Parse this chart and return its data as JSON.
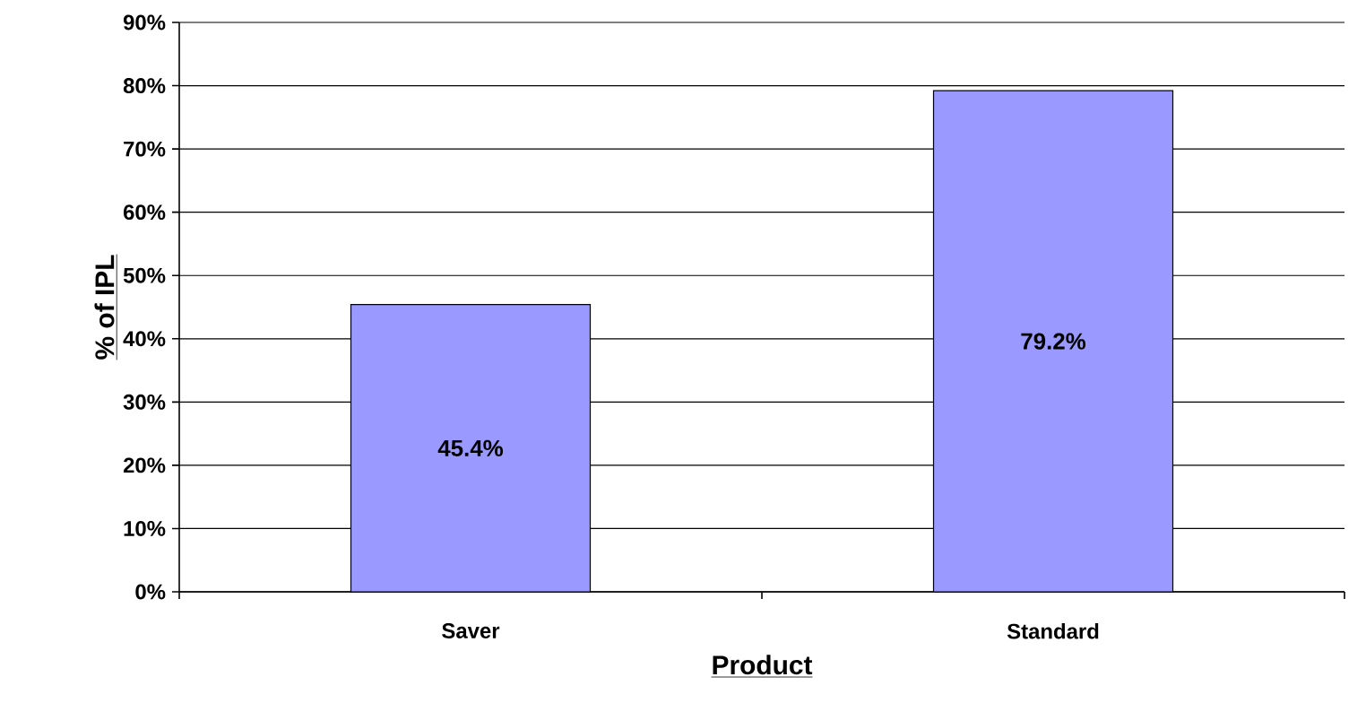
{
  "chart_data": {
    "type": "bar",
    "xlabel": "Product",
    "ylabel": "% of IPL",
    "categories": [
      "Saver",
      "Standard"
    ],
    "values": [
      45.4,
      79.2
    ],
    "value_labels": [
      "45.4%",
      "79.2%"
    ],
    "color": "#9999ff",
    "ylim": [
      0,
      90
    ],
    "yticks": [
      {
        "value": 0,
        "label": "0%"
      },
      {
        "value": 10,
        "label": "10%"
      },
      {
        "value": 20,
        "label": "20%"
      },
      {
        "value": 30,
        "label": "30%"
      },
      {
        "value": 40,
        "label": "40%"
      },
      {
        "value": 50,
        "label": "50%"
      },
      {
        "value": 60,
        "label": "60%"
      },
      {
        "value": 70,
        "label": "70%"
      },
      {
        "value": 80,
        "label": "80%"
      },
      {
        "value": 90,
        "label": "90%"
      }
    ],
    "grid": "y"
  }
}
